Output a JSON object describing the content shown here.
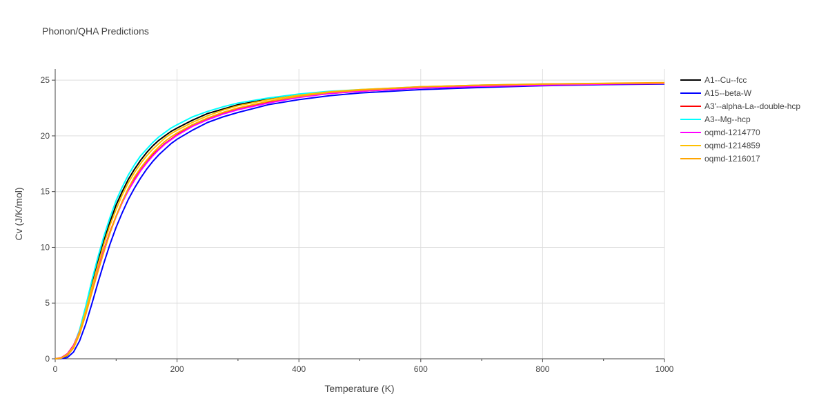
{
  "chart_data": {
    "type": "line",
    "title": "Phonon/QHA Predictions",
    "xlabel": "Temperature (K)",
    "ylabel": "Cv (J/K/mol)",
    "xlim": [
      0,
      1000
    ],
    "ylim": [
      0,
      26
    ],
    "xticks": [
      0,
      200,
      400,
      600,
      800,
      1000
    ],
    "yticks": [
      0,
      5,
      10,
      15,
      20,
      25
    ],
    "grid": true,
    "legend_position": "right",
    "series": [
      {
        "name": "A1--Cu--fcc",
        "color": "#000000",
        "x": [
          0,
          10,
          20,
          30,
          40,
          50,
          60,
          70,
          80,
          90,
          100,
          110,
          120,
          130,
          140,
          150,
          160,
          170,
          180,
          190,
          200,
          225,
          250,
          275,
          300,
          350,
          400,
          450,
          500,
          600,
          700,
          800,
          900,
          1000
        ],
        "y": [
          0,
          0.05,
          0.3,
          1.0,
          2.4,
          4.4,
          6.6,
          8.7,
          10.6,
          12.3,
          13.8,
          15.0,
          16.1,
          17.0,
          17.8,
          18.5,
          19.1,
          19.6,
          20.0,
          20.4,
          20.7,
          21.4,
          22.0,
          22.4,
          22.8,
          23.3,
          23.7,
          23.95,
          24.1,
          24.35,
          24.5,
          24.6,
          24.65,
          24.7
        ]
      },
      {
        "name": "A15--beta-W",
        "color": "#0000ff",
        "x": [
          0,
          10,
          20,
          30,
          40,
          50,
          60,
          70,
          80,
          90,
          100,
          110,
          120,
          130,
          140,
          150,
          160,
          170,
          180,
          190,
          200,
          225,
          250,
          275,
          300,
          350,
          400,
          450,
          500,
          600,
          700,
          800,
          900,
          1000
        ],
        "y": [
          0,
          0.02,
          0.12,
          0.6,
          1.6,
          3.1,
          4.9,
          6.8,
          8.6,
          10.3,
          11.8,
          13.1,
          14.3,
          15.3,
          16.2,
          17.0,
          17.7,
          18.3,
          18.8,
          19.3,
          19.7,
          20.5,
          21.2,
          21.7,
          22.1,
          22.8,
          23.25,
          23.6,
          23.85,
          24.15,
          24.35,
          24.5,
          24.6,
          24.65
        ]
      },
      {
        "name": "A3'--alpha-La--double-hcp",
        "color": "#ff0000",
        "x": [
          0,
          10,
          20,
          30,
          40,
          50,
          60,
          70,
          80,
          90,
          100,
          110,
          120,
          130,
          140,
          150,
          160,
          170,
          180,
          190,
          200,
          225,
          250,
          275,
          300,
          350,
          400,
          450,
          500,
          600,
          700,
          800,
          900,
          1000
        ],
        "y": [
          0,
          0.1,
          0.45,
          1.2,
          2.5,
          4.2,
          6.1,
          8.0,
          9.8,
          11.4,
          12.8,
          14.1,
          15.2,
          16.1,
          16.9,
          17.6,
          18.3,
          18.8,
          19.3,
          19.7,
          20.1,
          20.9,
          21.5,
          22.0,
          22.4,
          23.0,
          23.5,
          23.8,
          24.0,
          24.3,
          24.45,
          24.55,
          24.65,
          24.7
        ]
      },
      {
        "name": "A3--Mg--hcp",
        "color": "#00ffff",
        "x": [
          0,
          10,
          20,
          30,
          40,
          50,
          60,
          70,
          80,
          90,
          100,
          110,
          120,
          130,
          140,
          150,
          160,
          170,
          180,
          190,
          200,
          225,
          250,
          275,
          300,
          350,
          400,
          450,
          500,
          600,
          700,
          800,
          900,
          1000
        ],
        "y": [
          0,
          0.06,
          0.35,
          1.1,
          2.6,
          4.7,
          7.0,
          9.1,
          11.0,
          12.7,
          14.2,
          15.4,
          16.5,
          17.4,
          18.2,
          18.8,
          19.4,
          19.9,
          20.3,
          20.7,
          21.0,
          21.7,
          22.2,
          22.6,
          22.95,
          23.4,
          23.75,
          24.0,
          24.15,
          24.4,
          24.55,
          24.65,
          24.7,
          24.75
        ]
      },
      {
        "name": "oqmd-1214770",
        "color": "#ff00ff",
        "x": [
          0,
          10,
          20,
          30,
          40,
          50,
          60,
          70,
          80,
          90,
          100,
          110,
          120,
          130,
          140,
          150,
          160,
          170,
          180,
          190,
          200,
          225,
          250,
          275,
          300,
          350,
          400,
          450,
          500,
          600,
          700,
          800,
          900,
          1000
        ],
        "y": [
          0,
          0.09,
          0.42,
          1.15,
          2.45,
          4.15,
          6.05,
          7.95,
          9.75,
          11.35,
          12.75,
          14.0,
          15.1,
          16.0,
          16.85,
          17.55,
          18.2,
          18.75,
          19.25,
          19.65,
          20.05,
          20.85,
          21.45,
          21.95,
          22.35,
          22.95,
          23.45,
          23.8,
          24.0,
          24.3,
          24.45,
          24.55,
          24.65,
          24.7
        ]
      },
      {
        "name": "oqmd-1214859",
        "color": "#ffc000",
        "x": [
          0,
          10,
          20,
          30,
          40,
          50,
          60,
          70,
          80,
          90,
          100,
          110,
          120,
          130,
          140,
          150,
          160,
          170,
          180,
          190,
          200,
          225,
          250,
          275,
          300,
          350,
          400,
          450,
          500,
          600,
          700,
          800,
          900,
          1000
        ],
        "y": [
          0,
          0.07,
          0.38,
          1.05,
          2.4,
          4.3,
          6.4,
          8.4,
          10.3,
          12.0,
          13.4,
          14.7,
          15.8,
          16.7,
          17.5,
          18.2,
          18.8,
          19.3,
          19.8,
          20.2,
          20.5,
          21.2,
          21.8,
          22.3,
          22.7,
          23.25,
          23.65,
          23.95,
          24.15,
          24.4,
          24.55,
          24.65,
          24.7,
          24.75
        ]
      },
      {
        "name": "oqmd-1216017",
        "color": "#ffa500",
        "x": [
          0,
          10,
          20,
          30,
          40,
          50,
          60,
          70,
          80,
          90,
          100,
          110,
          120,
          130,
          140,
          150,
          160,
          170,
          180,
          190,
          200,
          225,
          250,
          275,
          300,
          350,
          400,
          450,
          500,
          600,
          700,
          800,
          900,
          1000
        ],
        "y": [
          0,
          0.06,
          0.33,
          0.95,
          2.2,
          3.95,
          5.9,
          7.8,
          9.6,
          11.3,
          12.8,
          14.1,
          15.3,
          16.3,
          17.1,
          17.8,
          18.45,
          19.0,
          19.5,
          19.9,
          20.25,
          21.0,
          21.6,
          22.1,
          22.5,
          23.1,
          23.55,
          23.9,
          24.1,
          24.4,
          24.55,
          24.65,
          24.72,
          24.78
        ]
      }
    ]
  }
}
